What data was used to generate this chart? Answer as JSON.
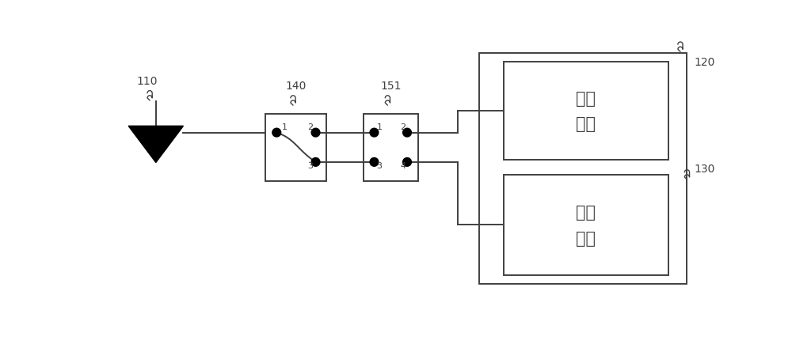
{
  "bg_color": "#ffffff",
  "line_color": "#404040",
  "label_110": "110",
  "label_120": "120",
  "label_130": "130",
  "label_140": "140",
  "label_151": "151",
  "chip1_text": "第一\n芯片",
  "chip2_text": "第二\n芯片",
  "font_size_label": 10,
  "font_size_chip": 15,
  "font_size_port": 8
}
